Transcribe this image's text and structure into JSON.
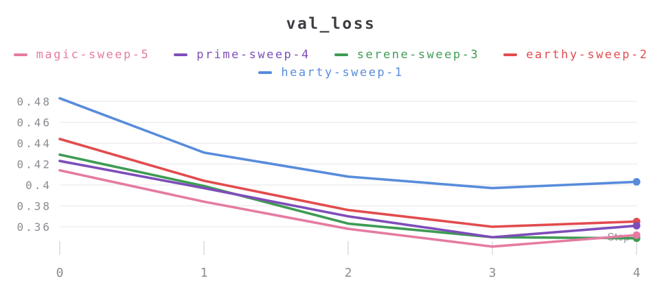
{
  "page": {
    "background": "#FFFFFF"
  },
  "chart_data": {
    "type": "line",
    "title": "val_loss",
    "xlabel": "Step",
    "x": [
      0,
      1,
      2,
      3,
      4
    ],
    "x_tick_labels": [
      "0",
      "1",
      "2",
      "3",
      "4"
    ],
    "y_ticks": [
      0.48,
      0.46,
      0.44,
      0.42,
      0.4,
      0.38,
      0.36
    ],
    "y_tick_labels": [
      "0.48",
      "0.46",
      "0.44",
      "0.42",
      "0.4",
      "0.38",
      "0.36"
    ],
    "ylim": [
      0.333,
      0.489
    ],
    "grid": "horizontal",
    "legend_position": "top",
    "legend_rows": [
      [
        "magic-sweep-5",
        "prime-sweep-4",
        "serene-sweep-3",
        "earthy-sweep-2"
      ],
      [
        "hearty-sweep-1"
      ]
    ],
    "series": [
      {
        "name": "magic-sweep-5",
        "color": "#E57BA2",
        "values": [
          0.414,
          0.384,
          0.358,
          0.341,
          0.352
        ]
      },
      {
        "name": "prime-sweep-4",
        "color": "#7E4DB9",
        "values": [
          0.423,
          0.397,
          0.37,
          0.35,
          0.361
        ]
      },
      {
        "name": "serene-sweep-3",
        "color": "#3E9B53",
        "values": [
          0.429,
          0.399,
          0.363,
          0.35,
          0.349
        ]
      },
      {
        "name": "earthy-sweep-2",
        "color": "#E24B4E",
        "values": [
          0.444,
          0.404,
          0.376,
          0.36,
          0.365
        ]
      },
      {
        "name": "hearty-sweep-1",
        "color": "#588CDB",
        "values": [
          0.483,
          0.431,
          0.408,
          0.397,
          0.403
        ]
      }
    ],
    "end_markers": true
  },
  "colors": {
    "title_text": "#3B3D42",
    "tick_label": "#8B8B92",
    "axis_label": "#96969C",
    "gridline": "#EBEBED",
    "tick_mark": "#E4E4E8"
  }
}
